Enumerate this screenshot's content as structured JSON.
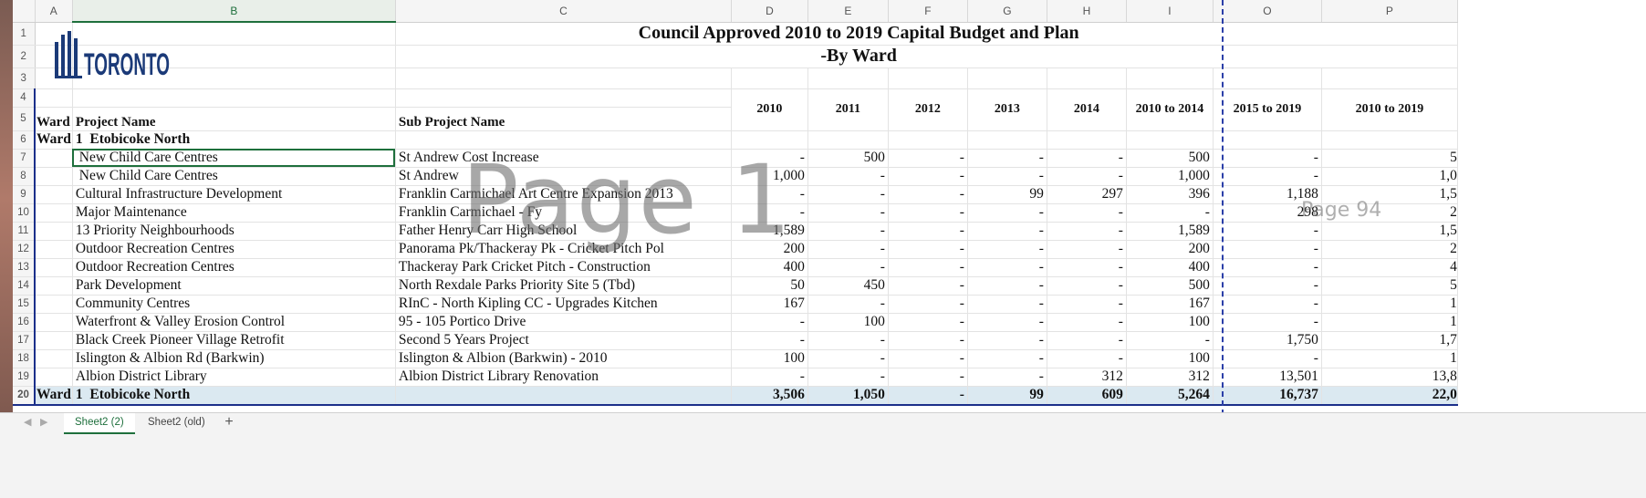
{
  "columns": [
    "A",
    "B",
    "C",
    "D",
    "E",
    "F",
    "G",
    "H",
    "I",
    "O",
    "P"
  ],
  "title_line1": "Council Approved 2010 to 2019 Capital Budget and Plan",
  "title_line2": "-By Ward",
  "logo_text": "TORONTO",
  "headers": {
    "ward": "Ward",
    "project": "Project Name",
    "sub": "Sub Project Name",
    "years": [
      "2010",
      "2011",
      "2012",
      "2013",
      "2014",
      "2010 to 2014",
      "2015 to 2019",
      "2010 to 2019"
    ]
  },
  "ward_heading": {
    "label": "Ward",
    "num": "1",
    "name": "Etobicoke North"
  },
  "rows": [
    {
      "n": "7",
      "project": " New Child Care Centres",
      "sub": "St Andrew Cost Increase",
      "v": [
        "-",
        "500",
        "-",
        "-",
        "-",
        "500",
        "-",
        "5"
      ]
    },
    {
      "n": "8",
      "project": " New Child Care Centres",
      "sub": "St Andrew",
      "v": [
        "1,000",
        "-",
        "-",
        "-",
        "-",
        "1,000",
        "-",
        "1,0"
      ]
    },
    {
      "n": "9",
      "project": "Cultural Infrastructure Development",
      "sub": "Franklin Carmichael Art Centre Expansion 2013",
      "v": [
        "-",
        "-",
        "-",
        "99",
        "297",
        "396",
        "1,188",
        "1,5"
      ]
    },
    {
      "n": "10",
      "project": "Major Maintenance",
      "sub": "Franklin Carmichael - Fy",
      "v": [
        "-",
        "-",
        "-",
        "-",
        "-",
        "-",
        "298",
        "2"
      ]
    },
    {
      "n": "11",
      "project": "13 Priority Neighbourhoods",
      "sub": "Father Henry Carr High School",
      "v": [
        "1,589",
        "-",
        "-",
        "-",
        "-",
        "1,589",
        "-",
        "1,5"
      ]
    },
    {
      "n": "12",
      "project": "Outdoor Recreation Centres",
      "sub": "Panorama Pk/Thackeray Pk - Cricket Pitch Pol",
      "v": [
        "200",
        "-",
        "-",
        "-",
        "-",
        "200",
        "-",
        "2"
      ]
    },
    {
      "n": "13",
      "project": "Outdoor Recreation Centres",
      "sub": "Thackeray Park Cricket Pitch - Construction",
      "v": [
        "400",
        "-",
        "-",
        "-",
        "-",
        "400",
        "-",
        "4"
      ]
    },
    {
      "n": "14",
      "project": "Park Development",
      "sub": "North Rexdale Parks Priority Site 5 (Tbd)",
      "v": [
        "50",
        "450",
        "-",
        "-",
        "-",
        "500",
        "-",
        "5"
      ]
    },
    {
      "n": "15",
      "project": "Community Centres",
      "sub": "RInC - North Kipling CC - Upgrades Kitchen",
      "v": [
        "167",
        "-",
        "-",
        "-",
        "-",
        "167",
        "-",
        "1"
      ]
    },
    {
      "n": "16",
      "project": "Waterfront & Valley Erosion Control",
      "sub": "95 - 105 Portico Drive",
      "v": [
        "-",
        "100",
        "-",
        "-",
        "-",
        "100",
        "-",
        "1"
      ]
    },
    {
      "n": "17",
      "project": "Black Creek Pioneer Village Retrofit",
      "sub": "Second 5 Years Project",
      "v": [
        "-",
        "-",
        "-",
        "-",
        "-",
        "-",
        "1,750",
        "1,7"
      ]
    },
    {
      "n": "18",
      "project": "Islington & Albion Rd (Barkwin)",
      "sub": "Islington & Albion (Barkwin) - 2010",
      "v": [
        "100",
        "-",
        "-",
        "-",
        "-",
        "100",
        "-",
        "1"
      ]
    },
    {
      "n": "19",
      "project": "Albion District Library",
      "sub": "Albion District Library Renovation",
      "v": [
        "-",
        "-",
        "-",
        "-",
        "312",
        "312",
        "13,501",
        "13,8"
      ]
    }
  ],
  "total": {
    "label": "Ward",
    "num": "1",
    "name": "Etobicoke North",
    "v": [
      "3,506",
      "1,050",
      "-",
      "99",
      "609",
      "5,264",
      "16,737",
      "22,0"
    ]
  },
  "watermark_main": "Page 1",
  "watermark_side": "Page 94",
  "tabs": [
    "Sheet2 (2)",
    "Sheet2 (old)"
  ],
  "add_tab": "+",
  "nav_prev": "◀",
  "nav_next": "▶"
}
